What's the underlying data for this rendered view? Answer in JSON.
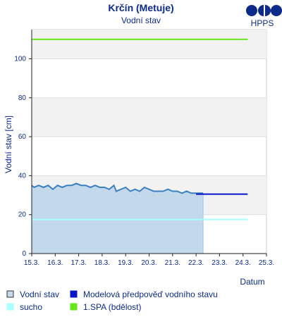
{
  "chart_data": {
    "type": "line",
    "title": "Krčín (Metuje)",
    "subtitle": "Vodní stav",
    "ylabel": "Vodní stav [cm]",
    "xlabel": "Datum",
    "ylim": [
      0,
      115
    ],
    "yticks": [
      0,
      20,
      40,
      60,
      80,
      100
    ],
    "xticks": [
      "15.3.",
      "16.3.",
      "17.3.",
      "18.3.",
      "19.3.",
      "20.3.",
      "21.3.",
      "22.3.",
      "23.3.",
      "24.3.",
      "25.3."
    ],
    "grid_bands": true,
    "series": [
      {
        "name": "Vodní stav",
        "kind": "area",
        "color": "#3a7fc0",
        "fill": "#c4d8ec",
        "x": [
          15.0,
          15.1,
          15.3,
          15.5,
          15.7,
          15.9,
          16.0,
          16.1,
          16.3,
          16.5,
          16.7,
          16.9,
          17.1,
          17.3,
          17.5,
          17.7,
          17.9,
          18.1,
          18.3,
          18.5,
          18.6,
          18.8,
          19.0,
          19.2,
          19.4,
          19.6,
          19.8,
          20.0,
          20.2,
          20.4,
          20.6,
          20.8,
          21.0,
          21.2,
          21.4,
          21.6,
          21.8,
          22.0,
          22.2,
          22.3
        ],
        "y": [
          35,
          34,
          35,
          34,
          35,
          33,
          34,
          35,
          34,
          35,
          35,
          36,
          35,
          35,
          34,
          35,
          34,
          34,
          33,
          35,
          32,
          33,
          34,
          32,
          33,
          32,
          34,
          33,
          32,
          32,
          32,
          33,
          32,
          32,
          31,
          32,
          31,
          31,
          31,
          31
        ]
      },
      {
        "name": "Modelová předpověď vodního stavu",
        "kind": "line",
        "color": "#0a14c8",
        "x": [
          22.0,
          24.2
        ],
        "y": [
          30.5,
          30.5
        ]
      },
      {
        "name": "sucho",
        "kind": "line",
        "color": "#a8ffff",
        "x": [
          15.0,
          24.2
        ],
        "y": [
          17.5,
          17.5
        ]
      },
      {
        "name": "1.SPA (bdělost)",
        "kind": "line",
        "color": "#66e619",
        "x": [
          15.0,
          24.2
        ],
        "y": [
          110,
          110
        ]
      }
    ]
  },
  "legend": [
    {
      "label": "Vodní stav",
      "color": "#c4d8ec",
      "border": "#333333"
    },
    {
      "label": "Modelová předpověď vodního stavu",
      "color": "#0a14c8",
      "border": "#0a14c8"
    },
    {
      "label": "sucho",
      "color": "#a8ffff",
      "border": "#a8ffff"
    },
    {
      "label": "1.SPA (bdělost)",
      "color": "#66e619",
      "border": "#66e619"
    }
  ],
  "logo": {
    "text": "HPPS",
    "icon": "hpps-logo-icon"
  }
}
